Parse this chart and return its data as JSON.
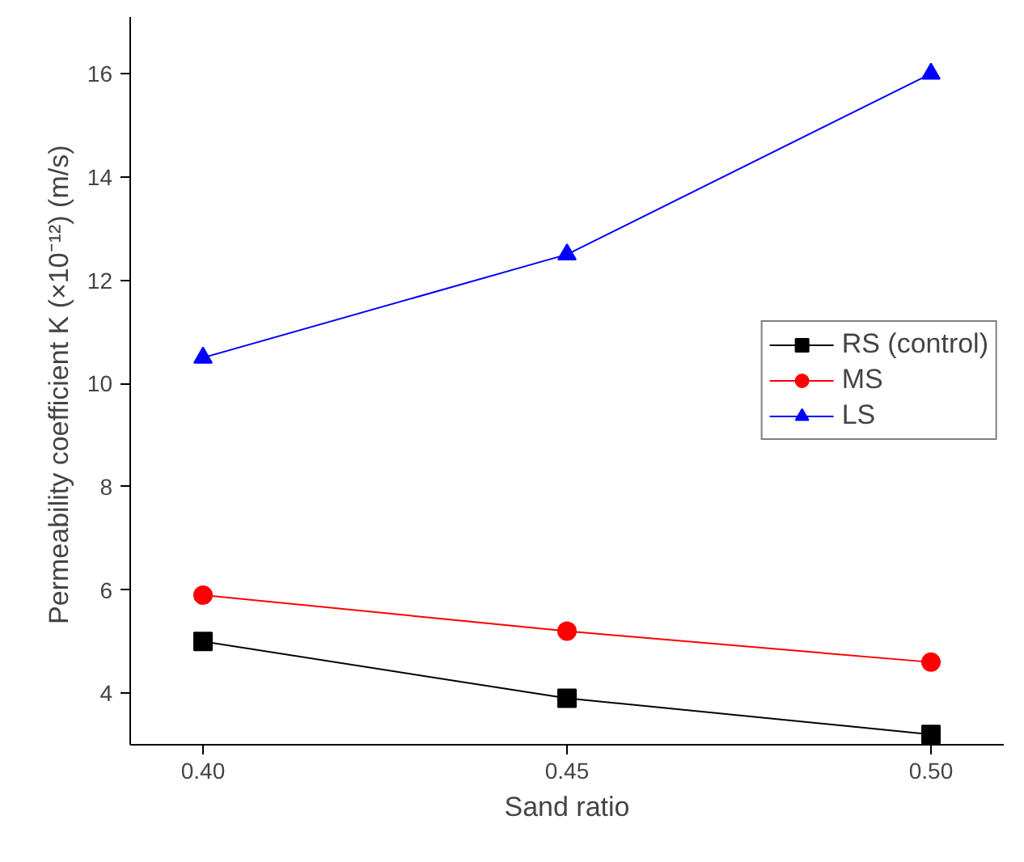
{
  "chart_data": {
    "type": "line",
    "xlabel": "Sand ratio",
    "ylabel": "Permeability coefficient K (×10⁻¹²)  (m/s)",
    "x": [
      0.4,
      0.45,
      0.5
    ],
    "series": [
      {
        "name": "RS (control)",
        "color": "#000000",
        "marker": "square",
        "values": [
          5.0,
          3.9,
          3.2
        ]
      },
      {
        "name": "MS",
        "color": "#ff0000",
        "marker": "circle",
        "values": [
          5.9,
          5.2,
          4.6
        ]
      },
      {
        "name": "LS",
        "color": "#0000ff",
        "marker": "triangle",
        "values": [
          10.5,
          12.5,
          16.0
        ]
      }
    ],
    "xlim": [
      0.39,
      0.51
    ],
    "xticks": [
      {
        "value": 0.4,
        "label": "0.40"
      },
      {
        "value": 0.45,
        "label": "0.45"
      },
      {
        "value": 0.5,
        "label": "0.50"
      }
    ],
    "ylim": [
      3,
      17.1
    ],
    "yticks": [
      4,
      6,
      8,
      10,
      12,
      14,
      16
    ],
    "grid": false,
    "legend": "right"
  }
}
